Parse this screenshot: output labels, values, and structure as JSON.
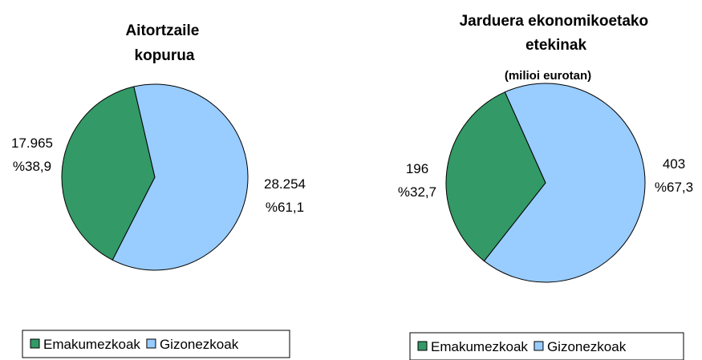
{
  "chart_data": [
    {
      "type": "pie",
      "title": "Aitortzaile kopurua",
      "categories": [
        "Emakumezkoak",
        "Gizonezkoak"
      ],
      "values": [
        17965,
        28254
      ],
      "value_labels": [
        "17.965",
        "28.254"
      ],
      "percentages": [
        38.9,
        61.1
      ],
      "percentage_labels": [
        "%38,9",
        "%61,1"
      ],
      "colors": [
        "#339966",
        "#99ccff"
      ],
      "legend": "bottom"
    },
    {
      "type": "pie",
      "title": "Jarduera ekonomikoetako etekinak",
      "subtitle": "(milioi eurotan)",
      "categories": [
        "Emakumezkoak",
        "Gizonezkoak"
      ],
      "values": [
        196,
        403
      ],
      "value_labels": [
        "196",
        "403"
      ],
      "percentages": [
        32.7,
        67.3
      ],
      "percentage_labels": [
        "%32,7",
        "%67,3"
      ],
      "colors": [
        "#339966",
        "#99ccff"
      ],
      "legend": "bottom"
    }
  ]
}
